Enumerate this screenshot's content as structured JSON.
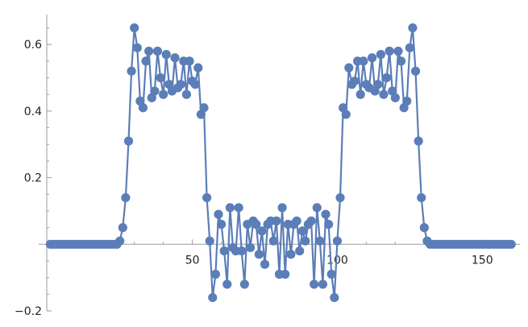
{
  "chart_data": {
    "type": "line",
    "title": "",
    "xlabel": "",
    "ylabel": "",
    "xlim": [
      -3,
      163
    ],
    "ylim": [
      -0.2,
      0.69
    ],
    "x_ticks": [
      50,
      100,
      150
    ],
    "x_tick_labels": [
      "50",
      "100",
      "150"
    ],
    "y_ticks": [
      -0.2,
      0.2,
      0.4,
      0.6
    ],
    "y_tick_labels": [
      "−0.2",
      "0.2",
      "0.4",
      "0.6"
    ],
    "grid": false,
    "legend": "none",
    "series": [
      {
        "color": "#5b7eb8",
        "x": [
          1,
          2,
          3,
          4,
          5,
          6,
          7,
          8,
          9,
          10,
          11,
          12,
          13,
          14,
          15,
          16,
          17,
          18,
          19,
          20,
          21,
          22,
          23,
          24,
          25,
          26,
          27,
          28,
          29,
          30,
          31,
          32,
          33,
          34,
          35,
          36,
          37,
          38,
          39,
          40,
          41,
          42,
          43,
          44,
          45,
          46,
          47,
          48,
          49,
          50,
          51,
          52,
          53,
          54,
          55,
          56,
          57,
          58,
          59,
          60,
          61,
          62,
          63,
          64,
          65,
          66,
          67,
          68,
          69,
          70,
          71,
          72,
          73,
          74,
          75,
          76,
          77,
          78,
          79,
          80,
          81,
          82,
          83,
          84,
          85,
          86,
          87,
          88,
          89,
          90,
          91,
          92,
          93,
          94,
          95,
          96,
          97,
          98,
          99,
          100,
          101,
          102,
          103,
          104,
          105,
          106,
          107,
          108,
          109,
          110,
          111,
          112,
          113,
          114,
          115,
          116,
          117,
          118,
          119,
          120,
          121,
          122,
          123,
          124,
          125,
          126,
          127,
          128,
          129,
          130,
          131,
          132,
          133,
          134,
          135,
          136,
          137,
          138,
          139,
          140,
          141,
          142,
          143,
          144,
          145,
          146,
          147,
          148,
          149,
          150,
          151,
          152,
          153,
          154,
          155,
          156,
          157,
          158,
          159,
          160
        ],
        "y": [
          0,
          0,
          0,
          0,
          0,
          0,
          0,
          0,
          0,
          0,
          0,
          0,
          0,
          0,
          0,
          0,
          0,
          0,
          0,
          0,
          0,
          0,
          0,
          0,
          0.01,
          0.05,
          0.14,
          0.31,
          0.52,
          0.65,
          0.59,
          0.43,
          0.41,
          0.55,
          0.58,
          0.44,
          0.46,
          0.58,
          0.5,
          0.45,
          0.57,
          0.48,
          0.46,
          0.56,
          0.47,
          0.48,
          0.55,
          0.45,
          0.55,
          0.49,
          0.48,
          0.53,
          0.39,
          0.41,
          0.14,
          0.01,
          -0.16,
          -0.09,
          0.09,
          0.06,
          -0.02,
          -0.12,
          0.11,
          -0.01,
          -0.02,
          0.11,
          -0.02,
          -0.12,
          0.06,
          -0.01,
          0.07,
          0.06,
          -0.03,
          0.04,
          -0.06,
          0.06,
          0.07,
          0.01,
          0.07,
          -0.09,
          0.11,
          -0.09,
          0.06,
          -0.03,
          0.06,
          0.07,
          -0.02,
          0.04,
          0.01,
          0.06,
          0.07,
          -0.12,
          0.11,
          0.01,
          -0.12,
          0.09,
          0.06,
          -0.09,
          -0.16,
          0.01,
          0.14,
          0.41,
          0.39,
          0.53,
          0.48,
          0.49,
          0.55,
          0.45,
          0.55,
          0.48,
          0.47,
          0.56,
          0.46,
          0.48,
          0.57,
          0.45,
          0.5,
          0.58,
          0.46,
          0.44,
          0.58,
          0.55,
          0.41,
          0.43,
          0.59,
          0.65,
          0.52,
          0.31,
          0.14,
          0.05,
          0.01,
          0,
          0,
          0,
          0,
          0,
          0,
          0,
          0,
          0,
          0,
          0,
          0,
          0,
          0,
          0,
          0,
          0,
          0,
          0,
          0,
          0,
          0,
          0,
          0,
          0,
          0,
          0,
          0,
          0
        ]
      }
    ]
  }
}
